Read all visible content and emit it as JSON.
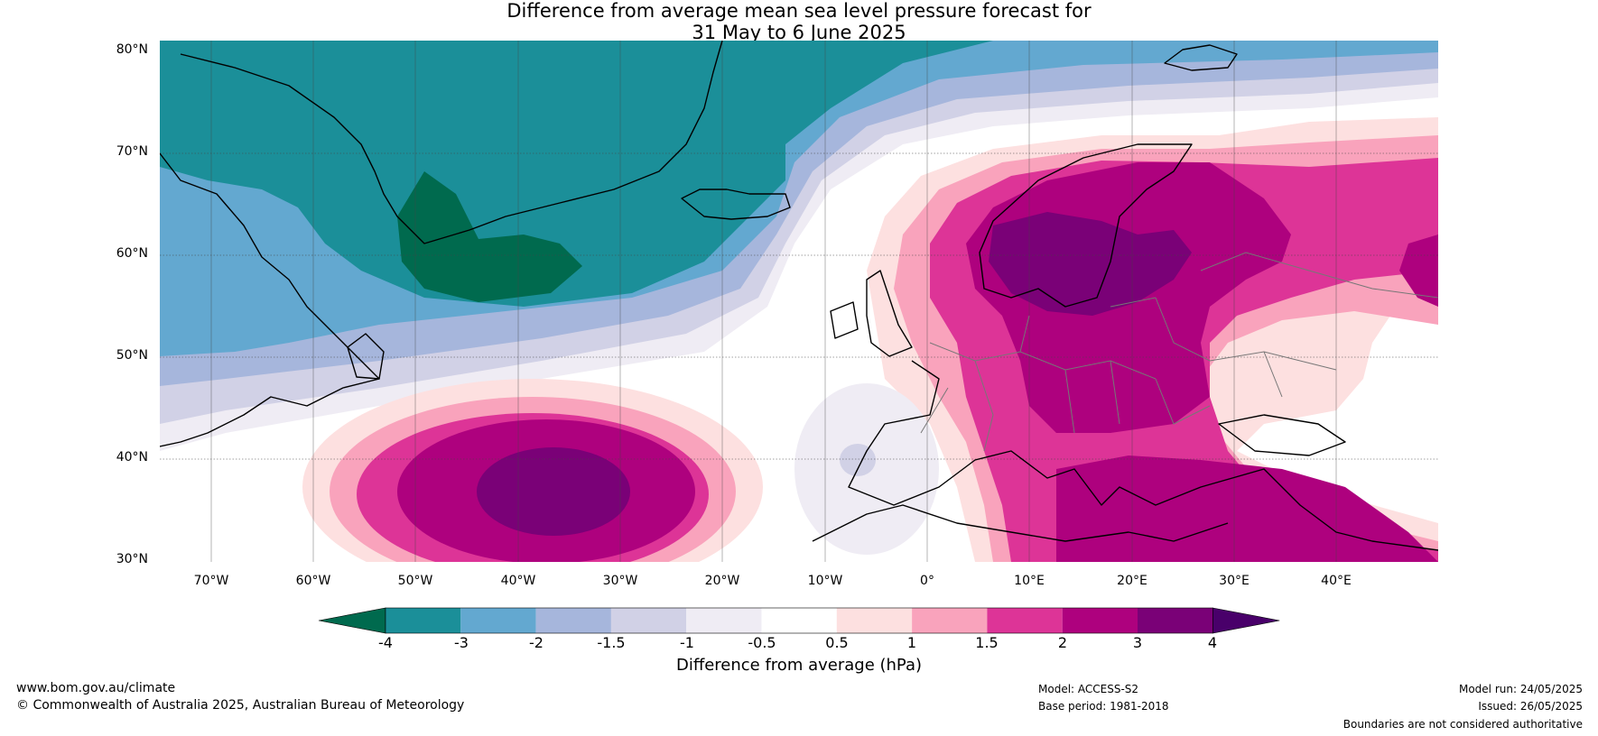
{
  "title": {
    "line1": "Difference from average mean sea level pressure forecast for",
    "line2": "31 May to 6 June 2025"
  },
  "map": {
    "lat_labels": [
      "80°N",
      "70°N",
      "60°N",
      "50°N",
      "40°N",
      "30°N"
    ],
    "lon_labels": [
      "70°W",
      "60°W",
      "50°W",
      "40°W",
      "30°W",
      "20°W",
      "10°W",
      "0°",
      "10°E",
      "20°E",
      "30°E",
      "40°E"
    ],
    "extent": {
      "lon_min": -75,
      "lon_max": 50,
      "lat_min": 30,
      "lat_max": 81
    },
    "high_centre_europe": {
      "lon": 18,
      "lat": 60
    },
    "high_centre_atlantic": {
      "lon": -40,
      "lat": 37
    },
    "low_centre_greenland": {
      "lon": -43,
      "lat": 62
    }
  },
  "colorbar": {
    "ticks": [
      "-4",
      "-3",
      "-2",
      "-1.5",
      "-1",
      "-0.5",
      "0.5",
      "1",
      "1.5",
      "2",
      "3",
      "4"
    ],
    "colors": [
      "#006a4e",
      "#1b8f99",
      "#63a8d0",
      "#a6b6dc",
      "#d1d1e6",
      "#efecf4",
      "#ffffff",
      "#fde0e0",
      "#f9a3bc",
      "#dd3497",
      "#ae017e",
      "#7a0177",
      "#49006a"
    ],
    "label": "Difference from average (hPa)"
  },
  "footer": {
    "website": "www.bom.gov.au/climate",
    "copyright": "© Commonwealth of Australia 2025, Australian Bureau of Meteorology",
    "model": "Model: ACCESS-S2",
    "base_period": "Base period: 1981-2018",
    "model_run": "Model run: 24/05/2025",
    "issued": "Issued: 26/05/2025",
    "disclaimer": "Boundaries are not considered authoritative"
  }
}
